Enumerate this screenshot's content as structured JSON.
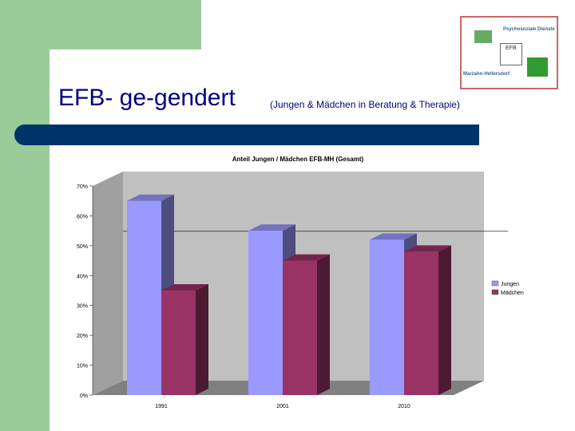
{
  "slide": {
    "title": "EFB- ge-gendert",
    "subtitle": "(Jungen & Mädchen in Beratung & Therapie)"
  },
  "logo": {
    "top_text": "Psychosoziale Dienste",
    "center_text": "EFB",
    "bottom_text": "Marzahn-Hellersdorf"
  },
  "colors": {
    "green_accent": "#99cc99",
    "navy": "#003366",
    "title_blue": "#000080",
    "jungen": "#9999ff",
    "maedchen": "#993366",
    "plot_bg": "#c0c0c0",
    "floor": "#808080"
  },
  "chart_data": {
    "type": "bar",
    "title": "Anteil Jungen / Mädchen EFB-MH (Gesamt)",
    "categories": [
      "1991",
      "2001",
      "2010"
    ],
    "series": [
      {
        "name": "Jungen",
        "values": [
          65,
          55,
          52
        ]
      },
      {
        "name": "Mädchen",
        "values": [
          35,
          45,
          48
        ]
      }
    ],
    "ylim": [
      0,
      70
    ],
    "yticks": [
      "0%",
      "10%",
      "20%",
      "30%",
      "40%",
      "50%",
      "60%",
      "70%"
    ],
    "legend": "right",
    "grid": false,
    "three_d": true
  }
}
